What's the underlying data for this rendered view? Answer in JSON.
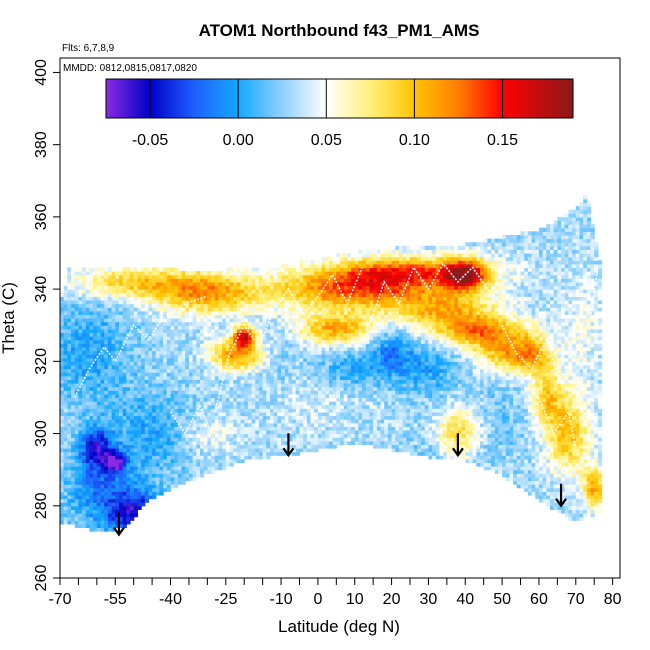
{
  "chart_data": {
    "type": "heatmap",
    "title": "ATOM1 Northbound f43_PM1_AMS",
    "flights_note": "Flts: 6,7,8,9",
    "dates_note": "MMDD: 0812,0815,0817,0820",
    "xlabel": "Latitude (deg N)",
    "ylabel": "Theta (C)",
    "xlim": [
      -70,
      82
    ],
    "ylim": [
      260,
      404
    ],
    "x_major_ticks": [
      -70,
      -55,
      -40,
      -25,
      -10,
      0,
      10,
      20,
      30,
      40,
      50,
      60,
      70,
      80
    ],
    "x_tick_labels": [
      "-70",
      "-55",
      "-40",
      "-25",
      "-10",
      "0",
      "10",
      "20",
      "30",
      "40",
      "50",
      "60",
      "70",
      "80"
    ],
    "x_minor_ticks": [
      -65,
      -60,
      -50,
      -45,
      -35,
      -30,
      -20,
      -15,
      -5,
      5,
      15,
      25,
      35,
      45,
      55,
      65,
      75
    ],
    "y_ticks": [
      260,
      280,
      300,
      320,
      340,
      360,
      380,
      400
    ],
    "y_tick_labels": [
      "260",
      "280",
      "300",
      "320",
      "340",
      "360",
      "380",
      "400"
    ],
    "colorbar": {
      "range": [
        -0.075,
        0.19
      ],
      "ticks": [
        -0.05,
        0.0,
        0.05,
        0.1,
        0.15
      ],
      "tick_labels": [
        "-0.05",
        "0.00",
        "0.05",
        "0.10",
        "0.15"
      ],
      "colors": [
        {
          "v": -0.075,
          "c": "#8a2be2"
        },
        {
          "v": -0.05,
          "c": "#0000c8"
        },
        {
          "v": -0.025,
          "c": "#1e5fff"
        },
        {
          "v": 0.0,
          "c": "#14a8ff"
        },
        {
          "v": 0.025,
          "c": "#8fd0ff"
        },
        {
          "v": 0.05,
          "c": "#ffffff"
        },
        {
          "v": 0.075,
          "c": "#fff07a"
        },
        {
          "v": 0.1,
          "c": "#ffc400"
        },
        {
          "v": 0.125,
          "c": "#ff7e00"
        },
        {
          "v": 0.15,
          "c": "#ff0000"
        },
        {
          "v": 0.19,
          "c": "#8b1a1a"
        }
      ]
    },
    "domain_top": [
      [
        -70,
        336
      ],
      [
        -68,
        346
      ],
      [
        -60,
        346
      ],
      [
        -45,
        346
      ],
      [
        -30,
        344
      ],
      [
        -20,
        346
      ],
      [
        -10,
        346
      ],
      [
        0,
        348
      ],
      [
        10,
        350
      ],
      [
        20,
        351
      ],
      [
        30,
        352
      ],
      [
        40,
        352
      ],
      [
        50,
        354
      ],
      [
        60,
        356
      ],
      [
        67,
        360
      ],
      [
        72,
        364
      ],
      [
        73,
        367
      ],
      [
        75,
        355
      ],
      [
        77,
        345
      ]
    ],
    "domain_bottom": [
      [
        -70,
        276
      ],
      [
        -62,
        274
      ],
      [
        -57,
        273
      ],
      [
        -52,
        275
      ],
      [
        -46,
        282
      ],
      [
        -36,
        287
      ],
      [
        -20,
        293
      ],
      [
        -5,
        295
      ],
      [
        10,
        298
      ],
      [
        30,
        294
      ],
      [
        40,
        293
      ],
      [
        50,
        289
      ],
      [
        60,
        282
      ],
      [
        70,
        276
      ],
      [
        77,
        279
      ]
    ],
    "arrows": [
      {
        "lat": -54,
        "theta": 272
      },
      {
        "lat": -8,
        "theta": 294
      },
      {
        "lat": 38,
        "theta": 294
      },
      {
        "lat": 66,
        "theta": 280
      }
    ],
    "features": [
      {
        "lat": -60,
        "theta": 296,
        "value": -0.04,
        "sx": 3,
        "sy": 4
      },
      {
        "lat": -55,
        "theta": 292,
        "value": -0.06,
        "sx": 2,
        "sy": 2
      },
      {
        "lat": -60,
        "theta": 285,
        "value": -0.01,
        "sx": 6,
        "sy": 7
      },
      {
        "lat": -50,
        "theta": 278,
        "value": -0.05,
        "sx": 5,
        "sy": 5
      },
      {
        "lat": -45,
        "theta": 300,
        "value": 0.0,
        "sx": 8,
        "sy": 8
      },
      {
        "lat": -62,
        "theta": 322,
        "value": 0.0,
        "sx": 8,
        "sy": 10
      },
      {
        "lat": -40,
        "theta": 335,
        "value": 0.03,
        "sx": 10,
        "sy": 4
      },
      {
        "lat": -50,
        "theta": 342,
        "value": 0.09,
        "sx": 12,
        "sy": 3
      },
      {
        "lat": -30,
        "theta": 339,
        "value": 0.11,
        "sx": 10,
        "sy": 4
      },
      {
        "lat": -20,
        "theta": 327,
        "value": 0.16,
        "sx": 2,
        "sy": 2
      },
      {
        "lat": -22,
        "theta": 322,
        "value": 0.12,
        "sx": 5,
        "sy": 3
      },
      {
        "lat": -10,
        "theta": 320,
        "value": 0.02,
        "sx": 6,
        "sy": 6
      },
      {
        "lat": 0,
        "theta": 310,
        "value": 0.04,
        "sx": 10,
        "sy": 8
      },
      {
        "lat": 10,
        "theta": 340,
        "value": 0.13,
        "sx": 15,
        "sy": 4
      },
      {
        "lat": 25,
        "theta": 345,
        "value": 0.12,
        "sx": 15,
        "sy": 3
      },
      {
        "lat": 40,
        "theta": 344,
        "value": 0.15,
        "sx": 4,
        "sy": 3
      },
      {
        "lat": 35,
        "theta": 334,
        "value": 0.1,
        "sx": 10,
        "sy": 4
      },
      {
        "lat": 5,
        "theta": 329,
        "value": 0.11,
        "sx": 7,
        "sy": 3
      },
      {
        "lat": 45,
        "theta": 328,
        "value": 0.11,
        "sx": 8,
        "sy": 3
      },
      {
        "lat": 50,
        "theta": 322,
        "value": 0.09,
        "sx": 5,
        "sy": 3
      },
      {
        "lat": 20,
        "theta": 322,
        "value": -0.015,
        "sx": 4,
        "sy": 5
      },
      {
        "lat": 30,
        "theta": 318,
        "value": 0.0,
        "sx": 5,
        "sy": 5
      },
      {
        "lat": 8,
        "theta": 318,
        "value": 0.0,
        "sx": 5,
        "sy": 4
      },
      {
        "lat": 38,
        "theta": 300,
        "value": 0.09,
        "sx": 4,
        "sy": 5
      },
      {
        "lat": 50,
        "theta": 305,
        "value": 0.02,
        "sx": 8,
        "sy": 6
      },
      {
        "lat": 62,
        "theta": 310,
        "value": 0.09,
        "sx": 3,
        "sy": 6
      },
      {
        "lat": 68,
        "theta": 300,
        "value": 0.1,
        "sx": 4,
        "sy": 8
      },
      {
        "lat": 72,
        "theta": 330,
        "value": 0.05,
        "sx": 4,
        "sy": 10
      },
      {
        "lat": 58,
        "theta": 322,
        "value": 0.1,
        "sx": 4,
        "sy": 4
      },
      {
        "lat": 35,
        "theta": 295,
        "value": 0.02,
        "sx": 10,
        "sy": 3
      },
      {
        "lat": 75,
        "theta": 285,
        "value": 0.11,
        "sx": 2,
        "sy": 4
      },
      {
        "lat": -30,
        "theta": 300,
        "value": 0.05,
        "sx": 6,
        "sy": 4
      }
    ],
    "base_value": 0.03
  }
}
